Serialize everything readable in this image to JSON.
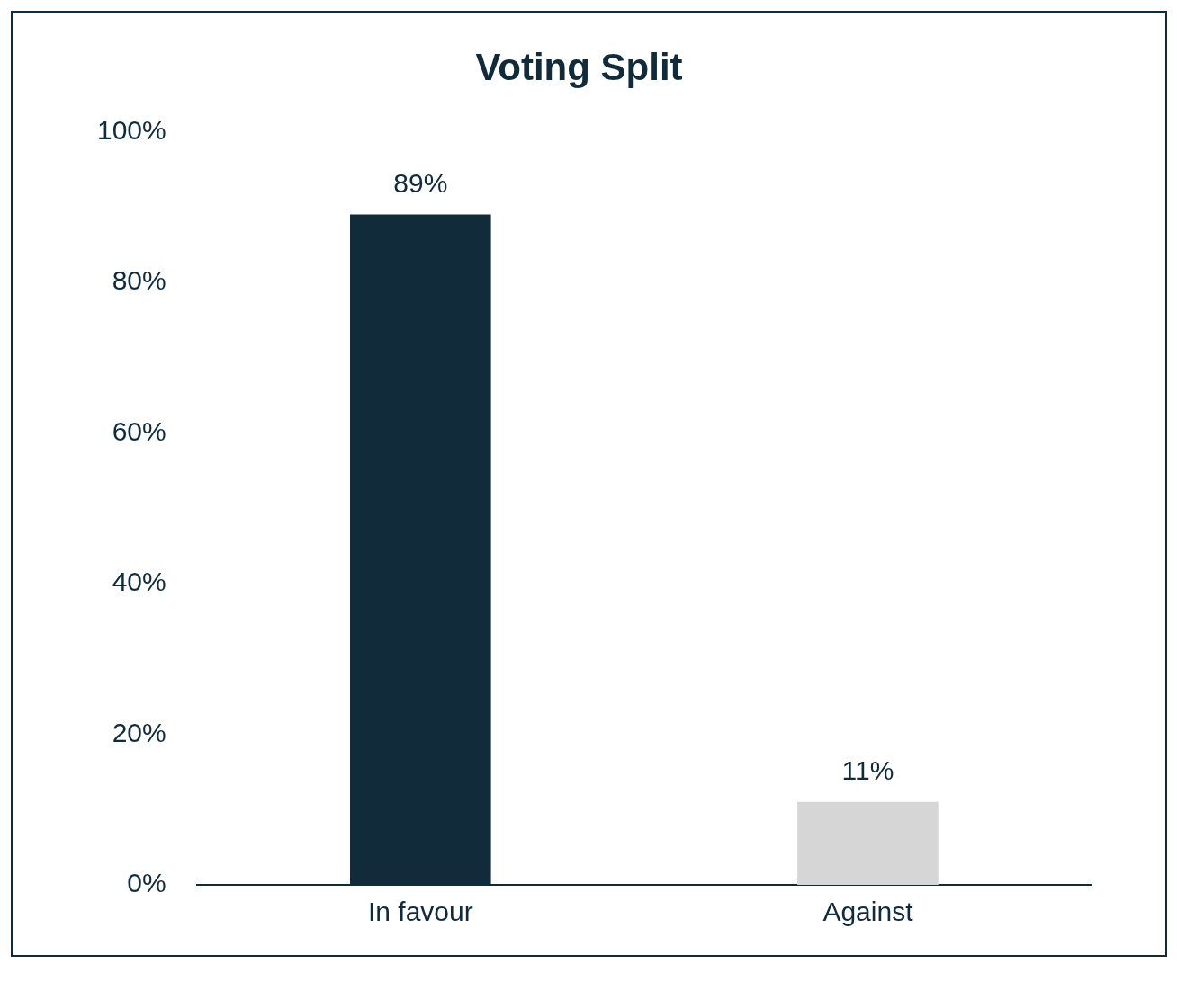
{
  "chart_data": {
    "type": "bar",
    "title": "Voting Split",
    "categories": [
      "In favour",
      "Against"
    ],
    "values": [
      89,
      11
    ],
    "colors": [
      "#122b3a",
      "#d6d6d6"
    ],
    "value_labels": [
      "89%",
      "11%"
    ],
    "ylim": [
      0,
      100
    ],
    "yticks": [
      {
        "value": 0,
        "label": "0%"
      },
      {
        "value": 20,
        "label": "20%"
      },
      {
        "value": 40,
        "label": "40%"
      },
      {
        "value": 60,
        "label": "60%"
      },
      {
        "value": 80,
        "label": "80%"
      },
      {
        "value": 100,
        "label": "100%"
      }
    ],
    "grid": false,
    "legend": false
  }
}
